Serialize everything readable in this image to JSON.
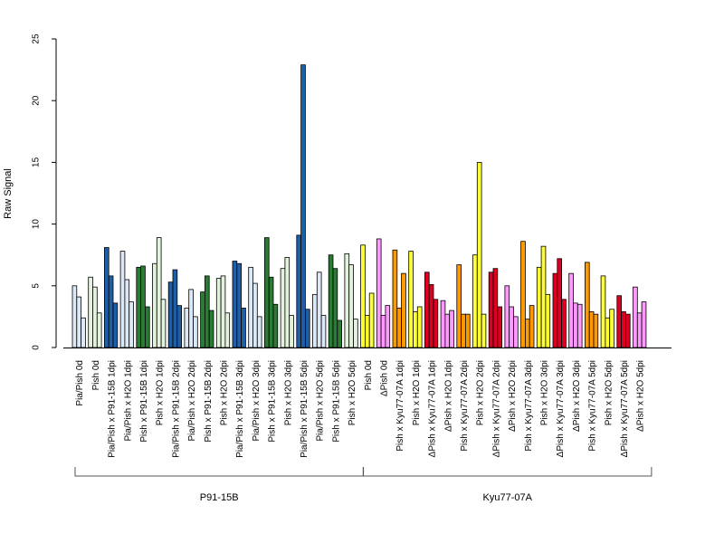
{
  "chart_data": {
    "type": "bar",
    "ylabel": "Raw Signal",
    "ylim": [
      0,
      25
    ],
    "yticks": [
      0,
      5,
      10,
      15,
      20,
      25
    ],
    "grid": false,
    "legend": "none",
    "categories": [
      "Pia/Pish 0d",
      "Pish 0d",
      "Pia/Pish x P91-15B 1dpi",
      "Pia/Pish x H2O 1dpi",
      "Pish x P91-15B 1dpi",
      "Pish x H2O 1dpi",
      "Pia/Pish x P91-15B 2dpi",
      "Pia/Pish x H2O 2dpi",
      "Pish x P91-15B 2dpi",
      "Pish x H2O 2dpi",
      "Pia/Pish x P91-15B 3dpi",
      "Pia/Pish x H2O 3dpi",
      "Pish x P91-15B 3dpi",
      "Pish x H2O 3dpi",
      "Pia/Pish x P91-15B 5dpi",
      "Pia/Pish x H2O 5dpi",
      "Pish x P91-15B 5dpi",
      "Pish x H2O 5dpi",
      "Pish 0d",
      "ΔPish 0d",
      "Pish x Kyu77-07A 1dpi",
      "Pish x H2O 1dpi",
      "ΔPish x Kyu77-07A 1dpi",
      "ΔPish x H2O 1dpi",
      "Pish x Kyu77-07A 2dpi",
      "Pish x H2O 2dpi",
      "ΔPish x Kyu77-07A 2dpi",
      "ΔPish x H2O 2dpi",
      "Pish x Kyu77-07A 3dpi",
      "Pish x H2O 3dpi",
      "ΔPish x Kyu77-07A 3dpi",
      "ΔPish x H2O 3dpi",
      "Pish x Kyu77-07A 5dpi",
      "Pish x H2O 5dpi",
      "ΔPish x Kyu77-07A 5dpi",
      "ΔPish x H2O 5dpi"
    ],
    "values": [
      [
        5.0,
        4.1,
        2.4
      ],
      [
        5.7,
        4.9,
        2.8
      ],
      [
        8.1,
        5.8,
        3.6
      ],
      [
        7.8,
        5.5,
        3.7
      ],
      [
        6.5,
        6.6,
        3.3
      ],
      [
        6.8,
        8.9,
        3.9
      ],
      [
        5.3,
        6.3,
        3.4
      ],
      [
        3.2,
        4.7,
        2.5
      ],
      [
        4.5,
        5.8,
        3.0
      ],
      [
        5.6,
        5.8,
        2.8
      ],
      [
        7.0,
        6.8,
        3.2
      ],
      [
        6.5,
        5.2,
        2.5
      ],
      [
        8.9,
        5.7,
        3.5
      ],
      [
        6.4,
        7.3,
        2.6
      ],
      [
        9.1,
        22.9,
        3.1
      ],
      [
        4.3,
        6.1,
        2.6
      ],
      [
        7.5,
        6.4,
        2.2
      ],
      [
        7.6,
        6.7,
        2.3
      ],
      [
        8.3,
        2.6,
        4.4
      ],
      [
        8.8,
        2.6,
        3.4
      ],
      [
        7.9,
        3.2,
        6.0
      ],
      [
        7.8,
        2.9,
        3.3
      ],
      [
        6.1,
        5.1,
        3.9
      ],
      [
        3.8,
        2.7,
        3.0
      ],
      [
        6.7,
        2.7,
        2.7
      ],
      [
        7.5,
        15.0,
        2.7
      ],
      [
        6.1,
        6.4,
        3.3
      ],
      [
        5.0,
        3.3,
        2.5
      ],
      [
        8.6,
        2.3,
        3.4
      ],
      [
        6.5,
        8.2,
        4.3
      ],
      [
        6.0,
        7.2,
        3.9
      ],
      [
        6.0,
        3.6,
        3.5
      ],
      [
        6.9,
        2.9,
        2.7
      ],
      [
        5.8,
        2.4,
        3.1
      ],
      [
        4.2,
        2.9,
        2.7
      ],
      [
        4.9,
        2.8,
        3.7
      ]
    ],
    "colors": [
      "#dce8f5",
      "#e3f2dd",
      "#1f5fa8",
      "#dce8f5",
      "#2a7b34",
      "#e3f2dd",
      "#1f5fa8",
      "#dce8f5",
      "#2a7b34",
      "#e3f2dd",
      "#1f5fa8",
      "#dce8f5",
      "#2a7b34",
      "#e3f2dd",
      "#1f5fa8",
      "#dce8f5",
      "#2a7b34",
      "#e3f2dd",
      "#ffff33",
      "#ff99ff",
      "#ff9900",
      "#ffff33",
      "#dd0022",
      "#ff99ff",
      "#ff9900",
      "#ffff33",
      "#dd0022",
      "#ff99ff",
      "#ff9900",
      "#ffff33",
      "#dd0022",
      "#ff99ff",
      "#ff9900",
      "#ffff33",
      "#dd0022",
      "#ff99ff"
    ],
    "groups": [
      {
        "label": "P91-15B",
        "start": 0,
        "end": 17
      },
      {
        "label": "Kyu77-07A",
        "start": 18,
        "end": 35
      }
    ]
  }
}
